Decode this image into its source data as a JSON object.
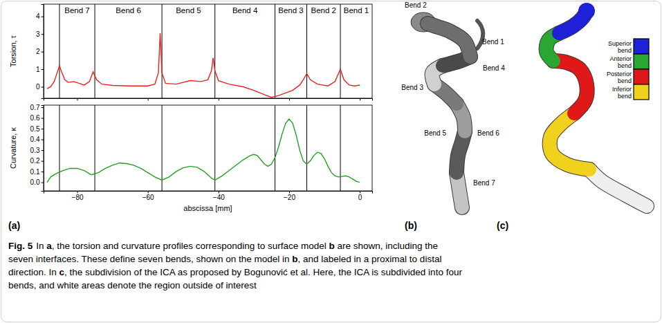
{
  "chart_data": [
    {
      "type": "line",
      "ylabel": "Torsion, τ",
      "color": "#e8231f",
      "tick_labels": "y",
      "xlim": [
        -89.5,
        3.5
      ],
      "ylim": [
        -0.65,
        4.7
      ],
      "xticks": [
        {
          "value": -80,
          "label": "−80"
        },
        {
          "value": -60,
          "label": "−60"
        },
        {
          "value": -40,
          "label": "−40"
        },
        {
          "value": -20,
          "label": "−20"
        },
        0
      ],
      "yticks": [
        0,
        1,
        2,
        3,
        4
      ],
      "interfaces": [
        -85,
        -75,
        -56,
        -41,
        -24,
        -15,
        -5.5
      ],
      "bend_labels": [
        "Bend 7",
        "Bend 6",
        "Bend 5",
        "Bend 4",
        "Bend 3",
        "Bend 2",
        "Bend 1"
      ],
      "x": [
        -88.5,
        -87.5,
        -86.5,
        -85.5,
        -85,
        -84.5,
        -83.5,
        -82.5,
        -81,
        -79.5,
        -78,
        -76.5,
        -75.5,
        -74.5,
        -73,
        -70,
        -65,
        -60,
        -58,
        -57,
        -56.5,
        -56,
        -55,
        -52,
        -48,
        -45,
        -43,
        -42,
        -41.5,
        -41,
        -40,
        -37,
        -33,
        -30,
        -27,
        -25,
        -23,
        -21,
        -19,
        -17,
        -16,
        -15,
        -14,
        -12,
        -9,
        -7,
        -5.5,
        -4.5,
        -3,
        -1.5,
        0
      ],
      "values": [
        -0.1,
        0.0,
        0.3,
        0.9,
        1.2,
        0.9,
        0.4,
        0.25,
        0.3,
        0.2,
        0.1,
        0.3,
        0.85,
        0.4,
        0.15,
        0.08,
        0.05,
        0.05,
        0.15,
        0.8,
        3.05,
        0.8,
        0.2,
        0.15,
        0.35,
        0.3,
        0.4,
        0.9,
        1.65,
        0.9,
        0.35,
        0.15,
        0.0,
        -0.2,
        -0.45,
        -0.6,
        -0.5,
        -0.35,
        -0.2,
        0.1,
        0.4,
        0.75,
        0.4,
        0.15,
        0.05,
        0.3,
        1.0,
        0.4,
        0.1,
        0.05,
        0.1
      ]
    },
    {
      "type": "line",
      "ylabel": "Curvature, κ",
      "xlabel": "abscissa [mm]",
      "color": "#23a023",
      "xlim": [
        -89.5,
        3.5
      ],
      "ylim": [
        -0.08,
        0.72
      ],
      "xticks": [
        {
          "value": -80,
          "label": "−80"
        },
        {
          "value": -60,
          "label": "−60"
        },
        {
          "value": -40,
          "label": "−40"
        },
        {
          "value": -20,
          "label": "−20"
        },
        0
      ],
      "yticks": [
        {
          "value": 0,
          "label": "0.0"
        },
        0.1,
        0.2,
        0.3,
        0.4,
        0.5,
        0.6,
        0.7
      ],
      "interfaces": [
        -85,
        -75,
        -56,
        -41,
        -24,
        -15,
        -5.5
      ],
      "x": [
        -88.5,
        -87.5,
        -86,
        -84,
        -82,
        -80,
        -78,
        -76,
        -74,
        -72,
        -70,
        -68,
        -66,
        -64,
        -62,
        -60,
        -58,
        -56,
        -54,
        -52,
        -50,
        -48,
        -46,
        -44,
        -42,
        -41,
        -39,
        -37,
        -35,
        -33,
        -31,
        -30,
        -29,
        -28,
        -27,
        -26,
        -25,
        -24,
        -23,
        -22,
        -21,
        -20,
        -19,
        -18,
        -17,
        -16,
        -15,
        -14,
        -13,
        -12,
        -11,
        -10,
        -9,
        -8,
        -7,
        -6,
        -5,
        -4,
        -3,
        -2,
        -1,
        0
      ],
      "values": [
        0.0,
        0.05,
        0.08,
        0.11,
        0.13,
        0.13,
        0.11,
        0.07,
        0.09,
        0.13,
        0.16,
        0.18,
        0.175,
        0.16,
        0.13,
        0.09,
        0.05,
        0.02,
        0.05,
        0.1,
        0.135,
        0.15,
        0.14,
        0.1,
        0.04,
        0.02,
        0.06,
        0.11,
        0.16,
        0.21,
        0.25,
        0.26,
        0.25,
        0.21,
        0.17,
        0.15,
        0.17,
        0.23,
        0.33,
        0.45,
        0.55,
        0.59,
        0.55,
        0.44,
        0.3,
        0.2,
        0.17,
        0.2,
        0.25,
        0.28,
        0.27,
        0.22,
        0.15,
        0.09,
        0.06,
        0.05,
        0.055,
        0.06,
        0.05,
        0.03,
        0.01,
        0.0
      ]
    }
  ],
  "panel_labels": [
    "(a)",
    "(b)",
    "(c)"
  ],
  "panel_b": {
    "labels": [
      "Bend 2",
      "Bend 1",
      "Bend 4",
      "Bend 3",
      "Bend 5",
      "Bend 6",
      "Bend 7"
    ]
  },
  "panel_c": {
    "legend": [
      {
        "label": "Superior bend",
        "color": "#2020d8"
      },
      {
        "label": "Anterior bend",
        "color": "#2aa632"
      },
      {
        "label": "Posterior bend",
        "color": "#e01818"
      },
      {
        "label": "Inferior bend",
        "color": "#f0d21e"
      }
    ]
  },
  "caption": {
    "label": "Fig. 5",
    "lines": [
      [
        {
          "text": "In "
        },
        {
          "text": "a",
          "emphasis": true
        },
        {
          "text": ", the torsion and curvature profiles corresponding to surface model "
        },
        {
          "text": "b",
          "emphasis": true
        },
        {
          "text": " are shown, including the"
        }
      ],
      [
        {
          "text": "seven interfaces. These define seven bends, shown on the model in "
        },
        {
          "text": "b",
          "emphasis": true
        },
        {
          "text": ", and labeled in a proximal to distal"
        }
      ],
      [
        {
          "text": "direction. In "
        },
        {
          "text": "c",
          "emphasis": true
        },
        {
          "text": ", the subdivision of the ICA as proposed by Bogunović et al. Here, the ICA is subdivided into four"
        }
      ],
      [
        {
          "text": "bends, and white areas denote the region outside of interest"
        }
      ]
    ]
  }
}
